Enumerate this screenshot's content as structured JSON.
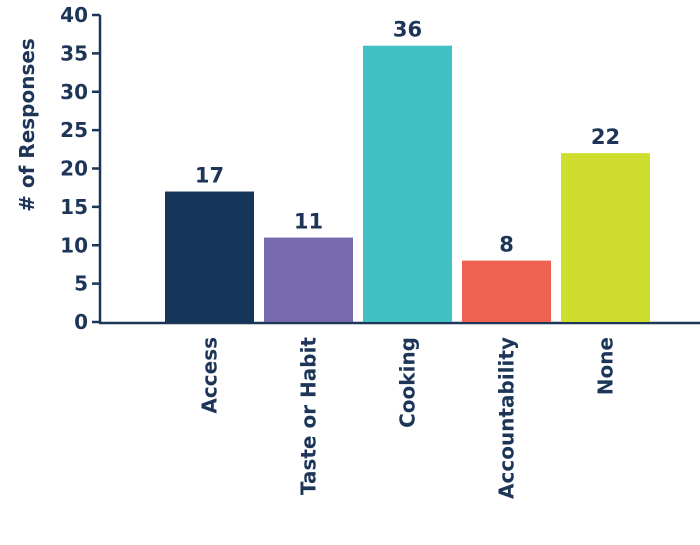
{
  "chart_data": {
    "type": "bar",
    "title": "",
    "xlabel": "",
    "ylabel": "# of Responses",
    "ylim": [
      0,
      40
    ],
    "yticks": [
      0,
      5,
      10,
      15,
      20,
      25,
      30,
      35,
      40
    ],
    "categories": [
      "Access",
      "Taste or Habit",
      "Cooking",
      "Accountability",
      "None"
    ],
    "values": [
      17,
      11,
      36,
      8,
      22
    ],
    "colors": [
      "#16355a",
      "#7669ae",
      "#41c1c3",
      "#ef6150",
      "#cfdd2f"
    ],
    "grid": false,
    "legend": "none"
  },
  "style": {
    "axis_color": "#1d3557",
    "text_color": "#1d3557"
  }
}
